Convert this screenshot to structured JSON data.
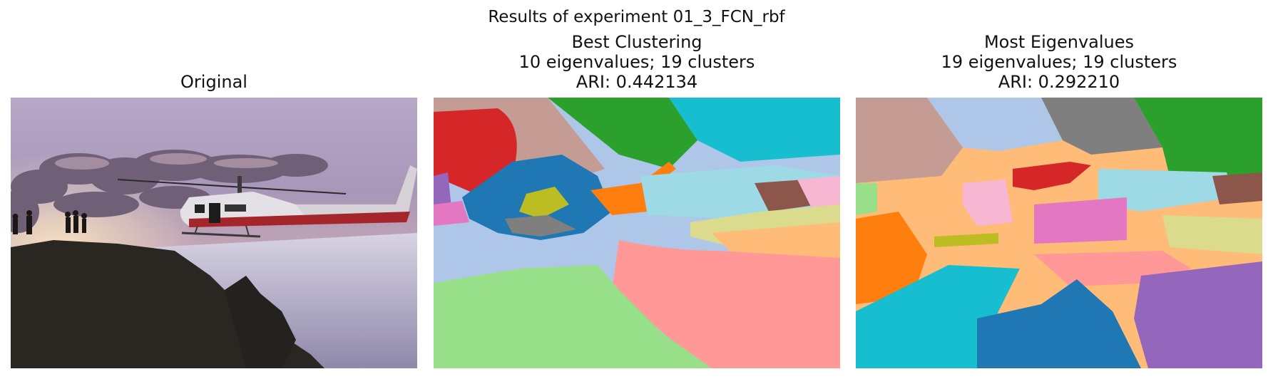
{
  "figure": {
    "suptitle": "Results of experiment 01_3_FCN_rbf"
  },
  "panels": [
    {
      "title_lines": [
        "Original"
      ],
      "image": "photo of a helicopter landing on a snowy hilltop at sunset with people silhouetted"
    },
    {
      "title_lines": [
        "Best Clustering",
        "10 eigenvalues; 19 clusters",
        "ARI: 0.442134"
      ],
      "image": "segmentation map"
    },
    {
      "title_lines": [
        "Most Eigenvalues",
        "19 eigenvalues; 19 clusters",
        "ARI: 0.292210"
      ],
      "image": "segmentation map"
    }
  ],
  "colors": {
    "tab_blue": "#1f77b4",
    "tab_lightblue": "#aec7e8",
    "tab_orange": "#ff7f0e",
    "tab_lightorange": "#ffbb78",
    "tab_green": "#2ca02c",
    "tab_lightgreen": "#98df8a",
    "tab_red": "#d62728",
    "tab_salmon": "#ff9896",
    "tab_purple": "#9467bd",
    "tab_lavender": "#c5b0d5",
    "tab_brown": "#8c564b",
    "tab_tan": "#c49c94",
    "tab_pink": "#e377c2",
    "tab_lightpink": "#f7b6d2",
    "tab_gray": "#7f7f7f",
    "tab_lightgray": "#c7c7c7",
    "tab_olive": "#bcbd22",
    "tab_lightolive": "#dbdb8d",
    "tab_cyan": "#17becf",
    "tab_lightcyan": "#9edae5"
  }
}
